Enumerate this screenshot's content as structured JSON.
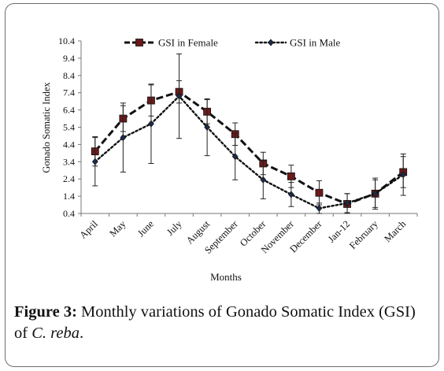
{
  "chart_data": {
    "type": "line",
    "categories": [
      "April",
      "May",
      "June",
      "July",
      "August",
      "September",
      "October",
      "November",
      "December",
      "Jan-12",
      "February",
      "March"
    ],
    "series": [
      {
        "name": "GSI in Female",
        "values": [
          4.0,
          5.9,
          6.95,
          7.45,
          6.3,
          5.0,
          3.3,
          2.55,
          1.6,
          0.95,
          1.55,
          2.8
        ],
        "errors": [
          0.85,
          0.75,
          0.9,
          0.65,
          0.7,
          0.65,
          0.65,
          0.65,
          0.7,
          0.6,
          0.9,
          0.9
        ],
        "color": "#111111",
        "marker_color": "#6b1a1a",
        "line_style": "dashed",
        "marker": "square"
      },
      {
        "name": "GSI in Male",
        "values": [
          3.4,
          4.8,
          5.6,
          7.2,
          5.4,
          3.7,
          2.35,
          1.5,
          0.7,
          1.0,
          1.55,
          2.65
        ],
        "errors": [
          1.4,
          2.0,
          2.3,
          2.45,
          1.65,
          1.35,
          1.1,
          0.7,
          0.3,
          0.55,
          0.8,
          1.2
        ],
        "color": "#111111",
        "marker_color": "#1c2a4a",
        "line_style": "dotted",
        "marker": "diamond"
      }
    ],
    "ylabel": "Gonado Somatic Index",
    "xlabel": "Months",
    "ylim": [
      0.4,
      10.4
    ],
    "yticks": [
      "0.4",
      "1.4",
      "2.4",
      "3.4",
      "4.4",
      "5.4",
      "6.4",
      "7.4",
      "8.4",
      "9.4",
      "10.4"
    ],
    "legend_position": "top",
    "grid": false
  },
  "caption": {
    "label": "Figure 3:",
    "text_before": " Monthly variations of Gonado Somatic Index (GSI) of ",
    "species": "C. reba",
    "text_after": "."
  }
}
